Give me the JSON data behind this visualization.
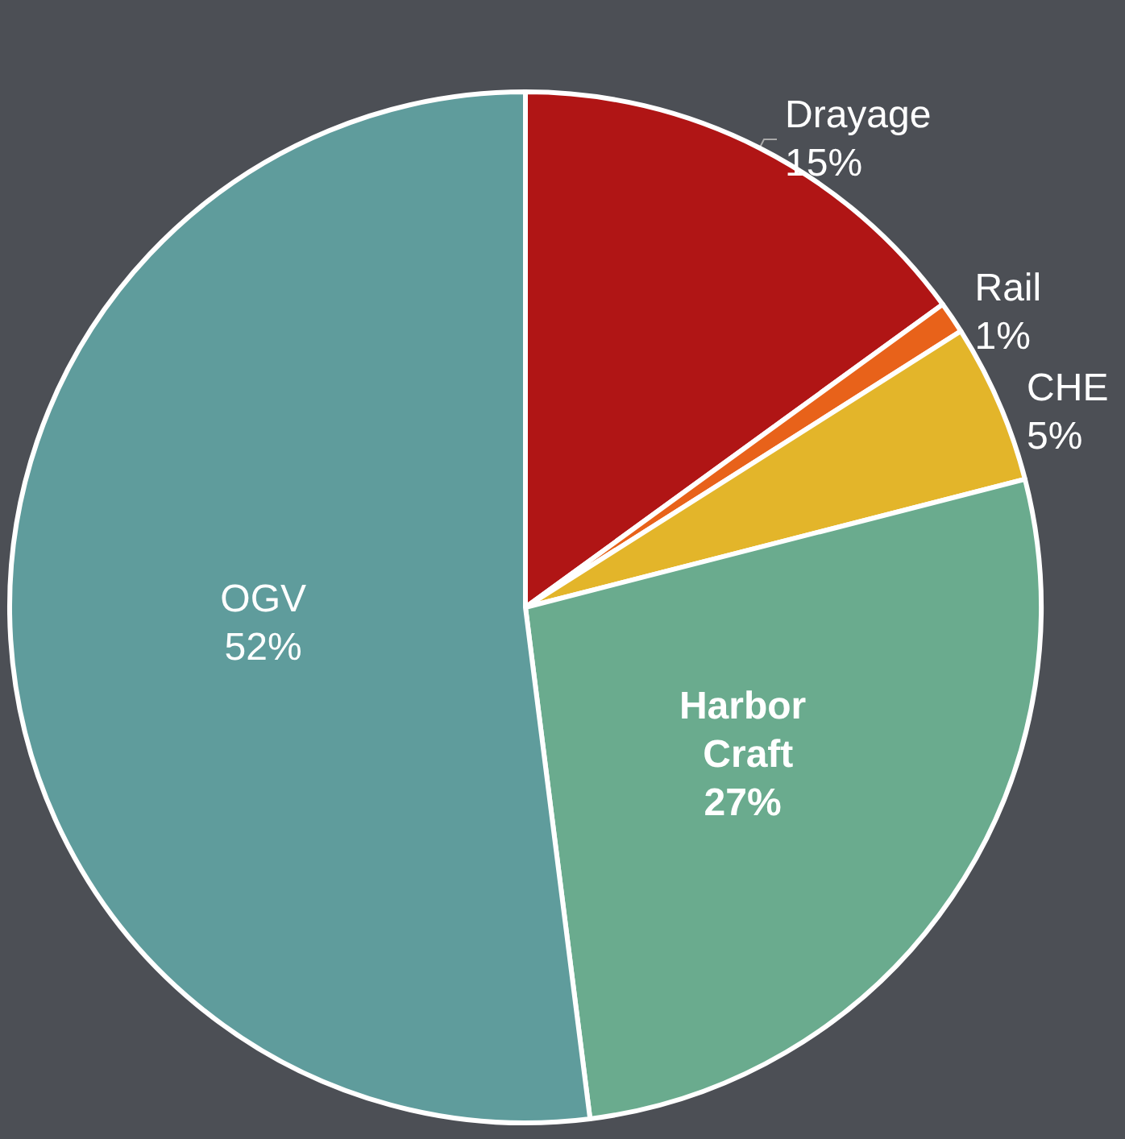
{
  "chart_data": {
    "type": "pie",
    "categories": [
      "Drayage",
      "Rail",
      "CHE",
      "Harbor Craft",
      "OGV"
    ],
    "values": [
      15,
      1,
      5,
      27,
      52
    ],
    "value_labels": [
      "15%",
      "1%",
      "5%",
      "27%",
      "52%"
    ],
    "colors": [
      "#b01515",
      "#e8621a",
      "#e3b52a",
      "#6aab8e",
      "#5f9c9c"
    ],
    "legend": false
  }
}
